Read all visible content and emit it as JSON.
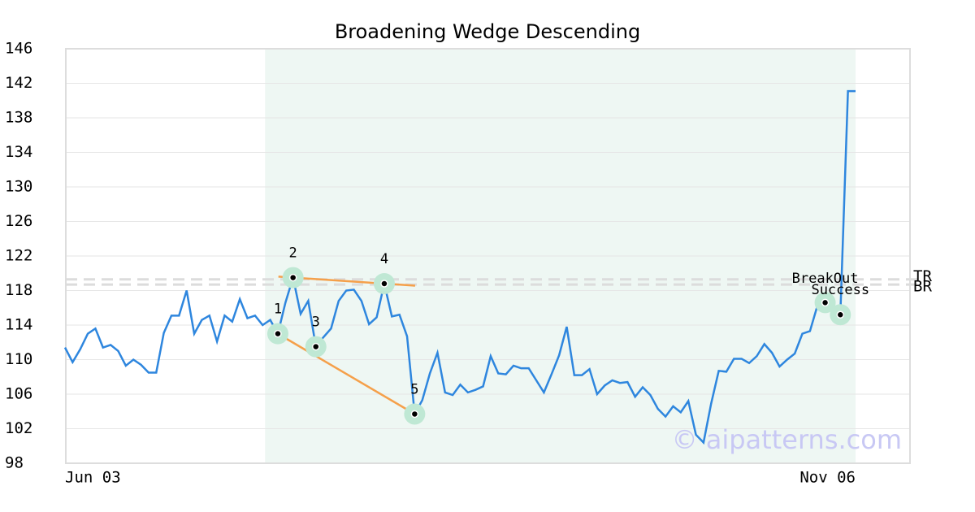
{
  "chart_data": {
    "type": "line",
    "title": "Broadening Wedge Descending",
    "categories": [
      "Jun 03",
      null,
      null,
      null,
      null,
      null,
      null,
      null,
      null,
      null,
      null,
      null,
      null,
      null,
      null,
      null,
      null,
      null,
      null,
      null,
      null,
      null,
      null,
      null,
      null,
      null,
      null,
      null,
      null,
      null,
      null,
      null,
      null,
      null,
      null,
      null,
      null,
      null,
      null,
      null,
      null,
      null,
      null,
      null,
      null,
      null,
      null,
      null,
      null,
      null,
      null,
      null,
      null,
      null,
      null,
      null,
      null,
      null,
      null,
      null,
      null,
      null,
      null,
      null,
      null,
      null,
      null,
      null,
      null,
      null,
      null,
      null,
      null,
      null,
      null,
      null,
      null,
      null,
      null,
      null,
      null,
      null,
      null,
      null,
      null,
      null,
      null,
      null,
      null,
      null,
      null,
      null,
      null,
      null,
      null,
      null,
      null,
      null,
      null,
      null,
      null,
      null,
      null,
      null,
      "Nov 06"
    ],
    "series": [
      {
        "color": "#2e86de",
        "values": [
          111.4,
          109.7,
          111.2,
          113.0,
          113.6,
          111.4,
          111.7,
          111.0,
          109.3,
          110.0,
          109.4,
          108.5,
          108.5,
          113.1,
          115.1,
          115.1,
          118.0,
          113.0,
          114.6,
          115.1,
          112.1,
          115.1,
          114.4,
          117.0,
          114.8,
          115.1,
          114.0,
          114.6,
          113.0,
          116.6,
          119.5,
          115.3,
          116.8,
          111.5,
          112.6,
          113.6,
          116.8,
          118.0,
          118.1,
          116.8,
          114.1,
          114.9,
          118.8,
          115.0,
          115.2,
          112.7,
          103.7,
          105.3,
          108.4,
          110.8,
          106.2,
          105.9,
          107.1,
          106.2,
          106.5,
          106.9,
          110.4,
          108.4,
          108.3,
          109.3,
          109.0,
          109.0,
          107.6,
          106.2,
          108.3,
          110.5,
          113.8,
          108.2,
          108.2,
          108.9,
          106.0,
          107.0,
          107.6,
          107.3,
          107.4,
          105.7,
          106.8,
          105.9,
          104.3,
          103.4,
          104.6,
          103.9,
          105.2,
          101.3,
          100.4,
          104.9,
          108.7,
          108.6,
          110.1,
          110.1,
          109.6,
          110.4,
          111.8,
          110.8,
          109.2,
          110.0,
          110.7,
          113.0,
          113.3,
          116.3,
          116.6,
          116.1,
          115.2,
          141.1,
          141.1
        ]
      }
    ],
    "ylim": [
      98,
      146
    ],
    "yticks": [
      98,
      102,
      106,
      110,
      114,
      118,
      122,
      126,
      130,
      134,
      138,
      142,
      146
    ],
    "grid": true,
    "shaded_span": [
      26,
      104
    ],
    "pattern_points": [
      {
        "label": "1",
        "index": 28,
        "value": 113.0
      },
      {
        "label": "2",
        "index": 30,
        "value": 119.5
      },
      {
        "label": "3",
        "index": 33,
        "value": 111.5
      },
      {
        "label": "4",
        "index": 42,
        "value": 118.8
      },
      {
        "label": "5",
        "index": 46,
        "value": 103.7
      }
    ],
    "signal_points": [
      {
        "label": "BreakOut",
        "index": 100,
        "value": 116.6
      },
      {
        "label": "Success",
        "index": 102,
        "value": 115.2
      }
    ],
    "levels": [
      {
        "label": "TR",
        "value": 119.3
      },
      {
        "label": "BR",
        "value": 118.7
      }
    ],
    "watermark": "© aipatterns.com"
  }
}
